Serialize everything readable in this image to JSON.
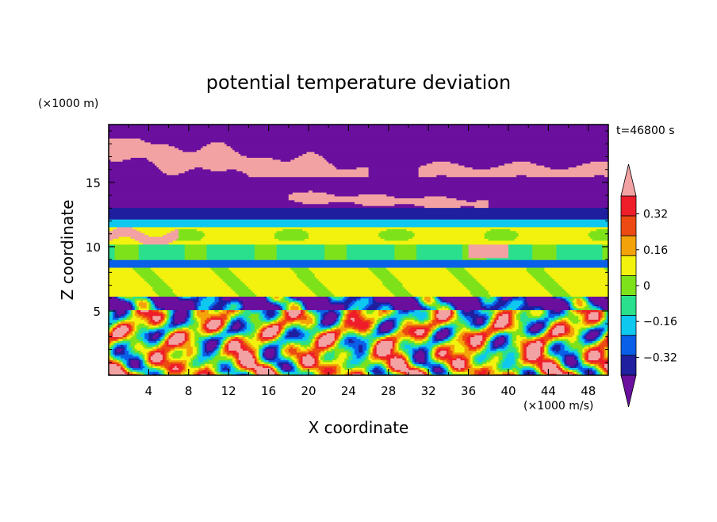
{
  "chart_data": {
    "type": "heatmap",
    "title": "potential temperature deviation",
    "xlabel": "X coordinate",
    "ylabel": "Z coordinate",
    "x_unit": "(×1000 m/s)",
    "y_unit": "(×1000 m)",
    "time_label": "t=46800 s",
    "xlim": [
      0,
      50
    ],
    "ylim": [
      0,
      19.5
    ],
    "x_ticks": [
      "4",
      "8",
      "12",
      "16",
      "20",
      "24",
      "28",
      "32",
      "36",
      "40",
      "44",
      "48"
    ],
    "y_ticks": [
      "5",
      "10",
      "15"
    ],
    "colorbar": {
      "labels": [
        "0.32",
        "0.16",
        "0",
        "−0.16",
        "−0.32"
      ],
      "levels": [
        -0.4,
        -0.32,
        -0.24,
        -0.16,
        -0.08,
        0,
        0.08,
        0.16,
        0.24,
        0.32,
        0.4
      ],
      "colors": [
        "#6a0f9e",
        "#1f1f9f",
        "#0a5fe8",
        "#0fc8f0",
        "#2ae08c",
        "#7ee21b",
        "#f2f20e",
        "#f4a20a",
        "#ec4a12",
        "#ef1d29",
        "#f2a2a2"
      ],
      "under_color": "#6a0f9e",
      "over_color": "#f2a2a2"
    },
    "bands": [
      {
        "z": [
          18.5,
          19.5
        ],
        "value": "-0.4"
      },
      {
        "z": [
          15.5,
          18.5
        ],
        "value": "0.4 / -0.4"
      },
      {
        "z": [
          13,
          15.5
        ],
        "value": "-0.4"
      },
      {
        "z": [
          12.2,
          13
        ],
        "value": "-0.32"
      },
      {
        "z": [
          11.6,
          12.2
        ],
        "value": "-0.16"
      },
      {
        "z": [
          10.2,
          11.6
        ],
        "value": "0.04"
      },
      {
        "z": [
          9,
          10.2
        ],
        "value": "-0.08"
      },
      {
        "z": [
          8.4,
          9
        ],
        "value": "-0.24"
      },
      {
        "z": [
          6,
          8.4
        ],
        "value": "0.04"
      },
      {
        "z": [
          0,
          6
        ],
        "value": "turbulent -0.4 to 0.4"
      }
    ]
  }
}
